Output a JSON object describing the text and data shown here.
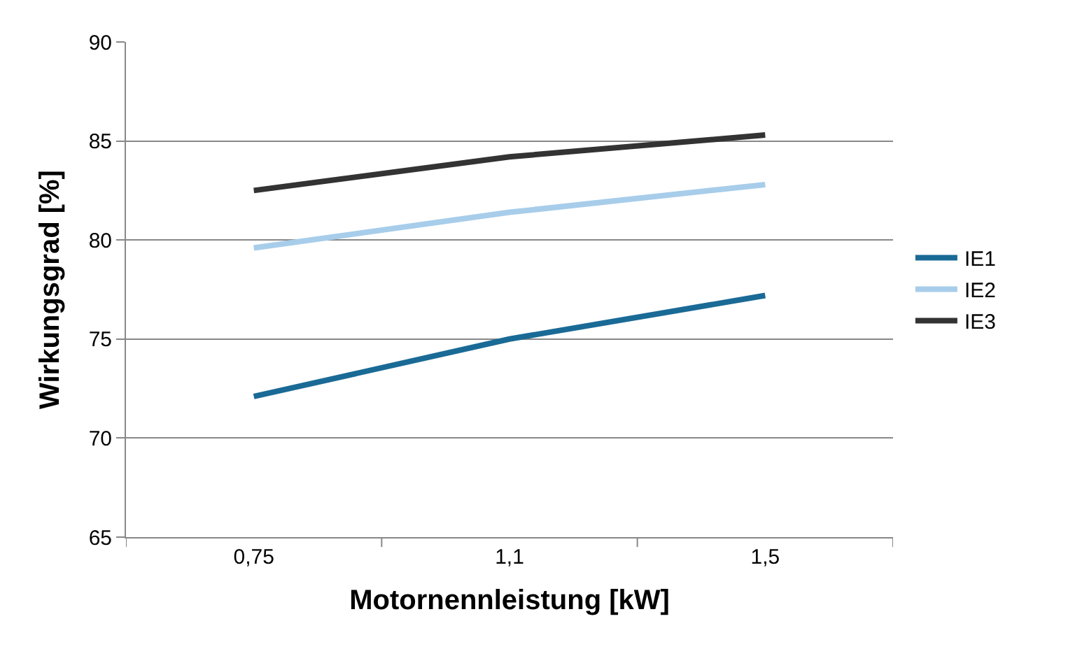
{
  "chart_data": {
    "type": "line",
    "xlabel": "Motornennleistung [kW]",
    "ylabel": "Wirkungsgrad [%]",
    "categories": [
      "0,75",
      "1,1",
      "1,5"
    ],
    "series": [
      {
        "name": "IE1",
        "color": "#1a6a96",
        "values": [
          72.1,
          75.0,
          77.2
        ]
      },
      {
        "name": "IE2",
        "color": "#a7cdea",
        "values": [
          79.6,
          81.4,
          82.8
        ]
      },
      {
        "name": "IE3",
        "color": "#333333",
        "values": [
          82.5,
          84.2,
          85.3
        ]
      }
    ],
    "ylim": [
      65,
      90
    ],
    "yticks": [
      65,
      70,
      75,
      80,
      85,
      90
    ],
    "grid": "y",
    "legend": "right",
    "marker": "none",
    "line_style": "solid"
  }
}
